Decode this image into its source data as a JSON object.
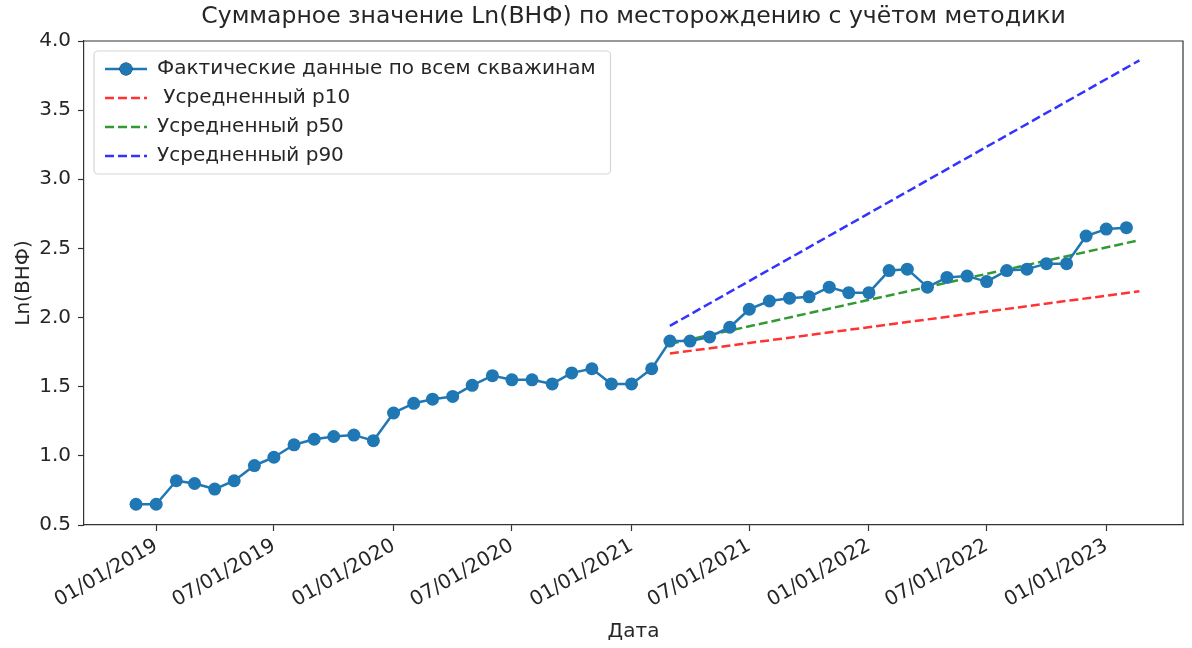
{
  "chart_data": {
    "type": "line",
    "title": "Суммарное значение Ln(ВНФ) по месторождению с учётом методики",
    "xlabel": "Дата",
    "ylabel": "Ln(ВНФ)",
    "x": [
      "2018-12-01",
      "2019-01-01",
      "2019-02-01",
      "2019-03-01",
      "2019-04-01",
      "2019-05-01",
      "2019-06-01",
      "2019-07-01",
      "2019-08-01",
      "2019-09-01",
      "2019-10-01",
      "2019-11-01",
      "2019-12-01",
      "2020-01-01",
      "2020-02-01",
      "2020-03-01",
      "2020-04-01",
      "2020-05-01",
      "2020-06-01",
      "2020-07-01",
      "2020-08-01",
      "2020-09-01",
      "2020-10-01",
      "2020-11-01",
      "2020-12-01",
      "2021-01-01",
      "2021-02-01",
      "2021-03-01",
      "2021-04-01",
      "2021-05-01",
      "2021-06-01",
      "2021-07-01",
      "2021-08-01",
      "2021-09-01",
      "2021-10-01",
      "2021-11-01",
      "2021-12-01",
      "2022-01-01",
      "2022-02-01",
      "2022-03-01",
      "2022-04-01",
      "2022-05-01",
      "2022-06-01",
      "2022-07-01",
      "2022-08-01",
      "2022-09-01",
      "2022-10-01",
      "2022-11-01",
      "2022-12-01",
      "2023-01-01",
      "2023-02-01"
    ],
    "series": [
      {
        "name": "Фактические данные по всем скважинам",
        "color": "#1f77b4",
        "marker": "circle",
        "line_style": "solid",
        "values": [
          0.65,
          0.65,
          0.82,
          0.8,
          0.76,
          0.82,
          0.93,
          0.99,
          1.08,
          1.12,
          1.14,
          1.15,
          1.11,
          1.31,
          1.38,
          1.41,
          1.43,
          1.51,
          1.58,
          1.55,
          1.55,
          1.52,
          1.6,
          1.63,
          1.52,
          1.52,
          1.63,
          1.83,
          1.83,
          1.86,
          1.93,
          2.06,
          2.12,
          2.14,
          2.15,
          2.22,
          2.18,
          2.18,
          2.34,
          2.35,
          2.22,
          2.29,
          2.3,
          2.26,
          2.34,
          2.35,
          2.39,
          2.39,
          2.59,
          2.64,
          2.65
        ]
      },
      {
        "name": " Усредненный p10",
        "color": "#ff3333",
        "marker": "none",
        "line_style": "dashed",
        "x": [
          "2021-03-01",
          "2023-02-21"
        ],
        "values": [
          1.74,
          2.19
        ]
      },
      {
        "name": "Усредненный p50",
        "color": "#339933",
        "marker": "none",
        "line_style": "dashed",
        "x": [
          "2021-03-01",
          "2023-02-21"
        ],
        "values": [
          1.81,
          2.56
        ]
      },
      {
        "name": "Усредненный p90",
        "color": "#3333ff",
        "marker": "none",
        "line_style": "dashed",
        "x": [
          "2021-03-01",
          "2023-02-21"
        ],
        "values": [
          1.94,
          3.86
        ]
      }
    ],
    "xlim": [
      "2018-09-12",
      "2023-04-29"
    ],
    "xticks": [
      {
        "value": "2019-01-01",
        "label": "01/01/2019"
      },
      {
        "value": "2019-07-01",
        "label": "07/01/2019"
      },
      {
        "value": "2020-01-01",
        "label": "01/01/2020"
      },
      {
        "value": "2020-07-01",
        "label": "07/01/2020"
      },
      {
        "value": "2021-01-01",
        "label": "01/01/2021"
      },
      {
        "value": "2021-07-01",
        "label": "07/01/2021"
      },
      {
        "value": "2022-01-01",
        "label": "01/01/2022"
      },
      {
        "value": "2022-07-01",
        "label": "07/01/2022"
      },
      {
        "value": "2023-01-01",
        "label": "01/01/2023"
      }
    ],
    "ylim": [
      0.5,
      4.0
    ],
    "yticks": [
      0.5,
      {
        "value": 1,
        "label": "1.0"
      },
      1.5,
      {
        "value": 2,
        "label": "2.0"
      },
      2.5,
      {
        "value": 3,
        "label": "3.0"
      },
      3.5,
      {
        "value": 4,
        "label": "4.0"
      }
    ],
    "grid": false,
    "legend": "top left"
  }
}
